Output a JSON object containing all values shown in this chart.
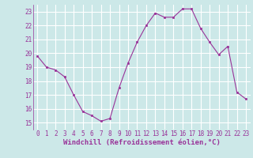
{
  "x": [
    0,
    1,
    2,
    3,
    4,
    5,
    6,
    7,
    8,
    9,
    10,
    11,
    12,
    13,
    14,
    15,
    16,
    17,
    18,
    19,
    20,
    21,
    22,
    23
  ],
  "y": [
    19.8,
    19.0,
    18.8,
    18.3,
    17.0,
    15.8,
    15.5,
    15.1,
    15.3,
    17.5,
    19.3,
    20.8,
    22.0,
    22.9,
    22.6,
    22.6,
    23.2,
    23.2,
    21.8,
    20.8,
    19.9,
    20.5,
    17.2,
    16.7
  ],
  "line_color": "#993399",
  "marker": "s",
  "marker_size": 2,
  "bg_color": "#cce8e8",
  "grid_color": "#ffffff",
  "xlabel": "Windchill (Refroidissement éolien,°C)",
  "xlabel_color": "#993399",
  "tick_color": "#993399",
  "ylim": [
    14.5,
    23.5
  ],
  "yticks": [
    15,
    16,
    17,
    18,
    19,
    20,
    21,
    22,
    23
  ],
  "xlim": [
    -0.5,
    23.5
  ],
  "xticks": [
    0,
    1,
    2,
    3,
    4,
    5,
    6,
    7,
    8,
    9,
    10,
    11,
    12,
    13,
    14,
    15,
    16,
    17,
    18,
    19,
    20,
    21,
    22,
    23
  ],
  "tick_fontsize": 5.5,
  "xlabel_fontsize": 6.5,
  "left_spine_color": "#993399"
}
